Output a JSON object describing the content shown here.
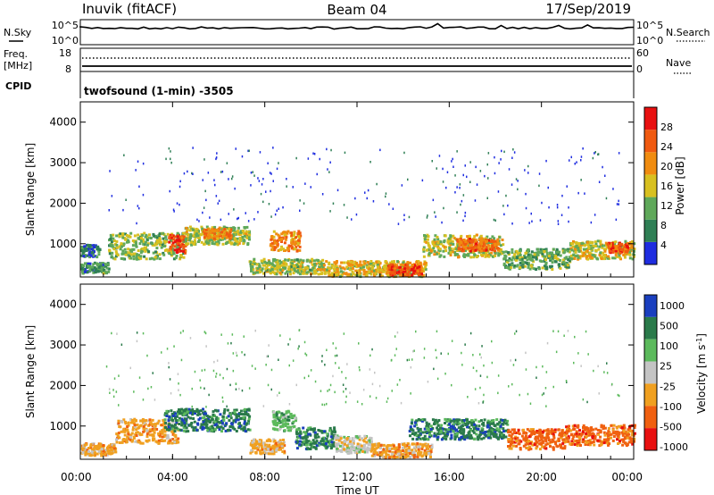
{
  "header": {
    "station": "Inuvik (fitACF)",
    "beam": "Beam 04",
    "date": "17/Sep/2019"
  },
  "colors": {
    "power_scale": [
      "#1f2de0",
      "#2f7f55",
      "#5fa85a",
      "#d8c020",
      "#f08c10",
      "#f05a10",
      "#e81010"
    ],
    "velocity_scale": [
      "#1a3fbf",
      "#2a7a4a",
      "#5cba5c",
      "#c4c4c4",
      "#f0a020",
      "#f06010",
      "#e81010"
    ],
    "ground_scatter": "#bebebe"
  },
  "panels": {
    "nsky": {
      "label": "N.Sky",
      "ticks": [
        "10^5",
        "10^0"
      ],
      "right_label": "N.Search",
      "right_ticks": [
        "10^5",
        "10^0"
      ]
    },
    "freq": {
      "label_top": "Freq.",
      "label_unit": "[MHz]",
      "ticks": [
        "18",
        "8"
      ],
      "right_label": "Nave",
      "right_ticks": [
        "60",
        "0"
      ]
    },
    "cpid": {
      "label": "CPID",
      "text": "twofsound (1-min) -3505"
    }
  },
  "chart_data": [
    {
      "type": "heatmap",
      "name": "power",
      "ylabel": "Slant Range [km]",
      "ylim": [
        180,
        4500
      ],
      "yticks": [
        1000,
        2000,
        3000,
        4000
      ],
      "colorbar": {
        "label": "Power [dB]",
        "ticks": [
          4,
          8,
          12,
          16,
          20,
          24,
          28
        ],
        "range": [
          0,
          32
        ]
      },
      "bands": [
        {
          "t0": 0.0,
          "t1": 1.2,
          "r0": 300,
          "r1": 560,
          "v": 9
        },
        {
          "t0": 0.0,
          "t1": 0.8,
          "r0": 700,
          "r1": 1000,
          "v": 6
        },
        {
          "t0": 1.2,
          "t1": 4.5,
          "r0": 650,
          "r1": 1300,
          "v": 13
        },
        {
          "t0": 3.8,
          "t1": 4.6,
          "r0": 800,
          "r1": 1250,
          "v": 27
        },
        {
          "t0": 4.5,
          "t1": 7.3,
          "r0": 1000,
          "r1": 1450,
          "v": 14
        },
        {
          "t0": 5.3,
          "t1": 6.5,
          "r0": 1150,
          "r1": 1400,
          "v": 22
        },
        {
          "t0": 8.2,
          "t1": 9.5,
          "r0": 850,
          "r1": 1350,
          "v": 22
        },
        {
          "t0": 7.3,
          "t1": 10.5,
          "r0": 280,
          "r1": 650,
          "v": 14
        },
        {
          "t0": 10.5,
          "t1": 15.0,
          "r0": 220,
          "r1": 600,
          "v": 17
        },
        {
          "t0": 13.3,
          "t1": 14.8,
          "r0": 250,
          "r1": 520,
          "v": 26
        },
        {
          "t0": 14.8,
          "t1": 18.3,
          "r0": 700,
          "r1": 1250,
          "v": 15
        },
        {
          "t0": 16.3,
          "t1": 18.1,
          "r0": 850,
          "r1": 1150,
          "v": 24
        },
        {
          "t0": 18.3,
          "t1": 21.2,
          "r0": 400,
          "r1": 900,
          "v": 11
        },
        {
          "t0": 21.2,
          "t1": 24.0,
          "r0": 650,
          "r1": 1100,
          "v": 15
        },
        {
          "t0": 22.8,
          "t1": 23.7,
          "r0": 800,
          "r1": 1050,
          "v": 25
        }
      ]
    },
    {
      "type": "heatmap",
      "name": "velocity",
      "ylabel": "Slant Range [km]",
      "ylim": [
        180,
        4500
      ],
      "yticks": [
        1000,
        2000,
        3000,
        4000
      ],
      "colorbar": {
        "label": "Velocity [m s^-1]",
        "ticks": [
          "1000",
          "500",
          "100",
          "25",
          "-25",
          "-100",
          "-500",
          "-1000"
        ]
      },
      "bands": [
        {
          "t0": 0.0,
          "t1": 1.5,
          "r0": 300,
          "r1": 600,
          "c": 4
        },
        {
          "t0": 1.5,
          "t1": 4.2,
          "r0": 600,
          "r1": 1200,
          "c": 4
        },
        {
          "t0": 3.6,
          "t1": 7.3,
          "r0": 900,
          "r1": 1450,
          "c": 1
        },
        {
          "t0": 7.3,
          "t1": 8.8,
          "r0": 350,
          "r1": 700,
          "c": 4
        },
        {
          "t0": 8.3,
          "t1": 9.3,
          "r0": 900,
          "r1": 1400,
          "c": 2
        },
        {
          "t0": 9.3,
          "t1": 11.0,
          "r0": 450,
          "r1": 1000,
          "c": 1
        },
        {
          "t0": 11.0,
          "t1": 12.6,
          "r0": 350,
          "r1": 800,
          "c": 3
        },
        {
          "t0": 12.6,
          "t1": 15.2,
          "r0": 250,
          "r1": 600,
          "c": 4
        },
        {
          "t0": 14.2,
          "t1": 18.5,
          "r0": 700,
          "r1": 1200,
          "c": 1
        },
        {
          "t0": 18.5,
          "t1": 21.0,
          "r0": 450,
          "r1": 950,
          "c": 5
        },
        {
          "t0": 21.0,
          "t1": 24.0,
          "r0": 550,
          "r1": 1050,
          "c": 5
        }
      ]
    }
  ],
  "xaxis": {
    "label": "Time UT",
    "ticks": [
      "00:00",
      "04:00",
      "08:00",
      "12:00",
      "16:00",
      "20:00",
      "00:00"
    ],
    "range_hours": [
      0,
      24
    ]
  }
}
